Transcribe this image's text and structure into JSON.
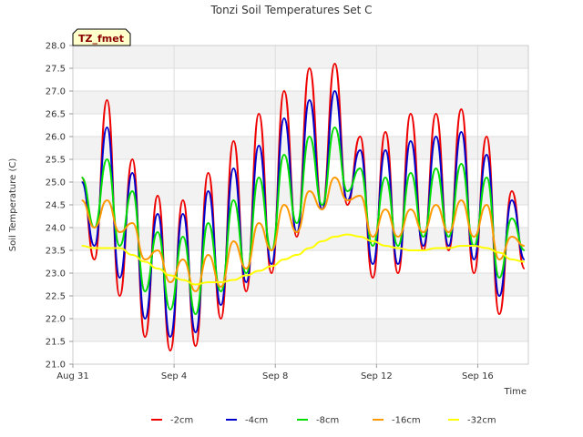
{
  "chart_data": {
    "type": "line",
    "title": "Tonzi Soil Temperatures Set C",
    "xlabel": "Time",
    "ylabel": "Soil Temperature (C)",
    "badge": "TZ_fmet",
    "x_unit": "days",
    "x_start": "Aug 31",
    "xlim": [
      0,
      18
    ],
    "ylim": [
      21.0,
      28.0
    ],
    "yticks": [
      "21.0",
      "21.5",
      "22.0",
      "22.5",
      "23.0",
      "23.5",
      "24.0",
      "24.5",
      "25.0",
      "25.5",
      "26.0",
      "26.5",
      "27.0",
      "27.5",
      "28.0"
    ],
    "xticks": [
      {
        "x": 0,
        "label": "Aug 31"
      },
      {
        "x": 4,
        "label": "Sep 4"
      },
      {
        "x": 8,
        "label": "Sep 8"
      },
      {
        "x": 12,
        "label": "Sep 12"
      },
      {
        "x": 16,
        "label": "Sep 16"
      }
    ],
    "grid": true,
    "legend_position": "bottom",
    "series": [
      {
        "name": "-2cm",
        "color": "#ee0000",
        "x_start": 0.35,
        "x_step": 0.5,
        "values": [
          25.1,
          23.3,
          26.8,
          22.5,
          25.5,
          21.6,
          24.7,
          21.3,
          24.6,
          21.4,
          25.2,
          22.0,
          25.9,
          22.6,
          26.5,
          23.0,
          27.0,
          23.8,
          27.5,
          24.4,
          27.6,
          24.5,
          26.0,
          22.9,
          26.1,
          23.0,
          26.5,
          23.5,
          26.5,
          23.5,
          26.6,
          23.0,
          26.0,
          22.1,
          24.8,
          23.1
        ]
      },
      {
        "name": "-4cm",
        "color": "#0000cc",
        "x_start": 0.35,
        "x_step": 0.5,
        "values": [
          25.0,
          23.6,
          26.2,
          22.9,
          25.2,
          22.0,
          24.3,
          21.6,
          24.3,
          21.7,
          24.8,
          22.3,
          25.3,
          22.8,
          25.8,
          23.2,
          26.4,
          23.9,
          26.8,
          24.4,
          27.0,
          24.6,
          25.7,
          23.2,
          25.7,
          23.2,
          25.9,
          23.6,
          26.0,
          23.6,
          26.1,
          23.3,
          25.6,
          22.5,
          24.6,
          23.3
        ]
      },
      {
        "name": "-8cm",
        "color": "#00dd00",
        "x_start": 0.35,
        "x_step": 0.5,
        "values": [
          25.1,
          24.0,
          25.5,
          23.6,
          24.8,
          22.6,
          23.9,
          22.2,
          23.8,
          22.1,
          24.1,
          22.6,
          24.6,
          23.0,
          25.1,
          23.5,
          25.6,
          24.1,
          26.0,
          24.5,
          26.2,
          24.8,
          25.3,
          23.6,
          25.1,
          23.6,
          25.2,
          23.8,
          25.3,
          23.8,
          25.4,
          23.6,
          25.1,
          22.9,
          24.2,
          23.5
        ]
      },
      {
        "name": "-16cm",
        "color": "#ff9900",
        "x_start": 0.35,
        "x_step": 0.5,
        "values": [
          24.6,
          24.0,
          24.6,
          23.9,
          24.1,
          23.3,
          23.5,
          22.8,
          23.3,
          22.6,
          23.4,
          22.7,
          23.7,
          23.1,
          24.1,
          23.5,
          24.5,
          23.9,
          24.8,
          24.4,
          25.1,
          24.6,
          24.7,
          23.8,
          24.4,
          23.8,
          24.4,
          23.9,
          24.5,
          23.9,
          24.6,
          23.8,
          24.5,
          23.3,
          23.8,
          23.6
        ]
      },
      {
        "name": "-32cm",
        "color": "#ffff00",
        "x_start": 0.35,
        "x_step": 0.5,
        "values": [
          23.6,
          23.55,
          23.55,
          23.55,
          23.4,
          23.25,
          23.1,
          22.95,
          22.85,
          22.75,
          22.8,
          22.8,
          22.85,
          22.95,
          23.05,
          23.15,
          23.3,
          23.4,
          23.55,
          23.7,
          23.8,
          23.85,
          23.8,
          23.7,
          23.6,
          23.55,
          23.5,
          23.5,
          23.55,
          23.55,
          23.6,
          23.6,
          23.55,
          23.45,
          23.3,
          23.25
        ]
      }
    ]
  }
}
